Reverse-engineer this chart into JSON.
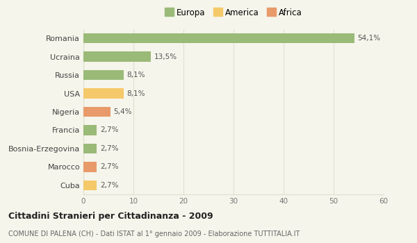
{
  "categories": [
    "Romania",
    "Ucraina",
    "Russia",
    "USA",
    "Nigeria",
    "Francia",
    "Bosnia-Erzegovina",
    "Marocco",
    "Cuba"
  ],
  "values": [
    54.1,
    13.5,
    8.1,
    8.1,
    5.4,
    2.7,
    2.7,
    2.7,
    2.7
  ],
  "labels": [
    "54,1%",
    "13,5%",
    "8,1%",
    "8,1%",
    "5,4%",
    "2,7%",
    "2,7%",
    "2,7%",
    "2,7%"
  ],
  "colors": [
    "#9aba78",
    "#9aba78",
    "#9aba78",
    "#f5c96a",
    "#e89a6a",
    "#9aba78",
    "#9aba78",
    "#e89a6a",
    "#f5c96a"
  ],
  "legend_labels": [
    "Europa",
    "America",
    "Africa"
  ],
  "legend_colors": [
    "#9aba78",
    "#f5c96a",
    "#e89a6a"
  ],
  "xlim": [
    0,
    60
  ],
  "xticks": [
    0,
    10,
    20,
    30,
    40,
    50,
    60
  ],
  "title": "Cittadini Stranieri per Cittadinanza - 2009",
  "subtitle": "COMUNE DI PALENA (CH) - Dati ISTAT al 1° gennaio 2009 - Elaborazione TUTTITALIA.IT",
  "bg_color": "#f5f5eb",
  "grid_color": "#e0e0d0",
  "bar_height": 0.55
}
